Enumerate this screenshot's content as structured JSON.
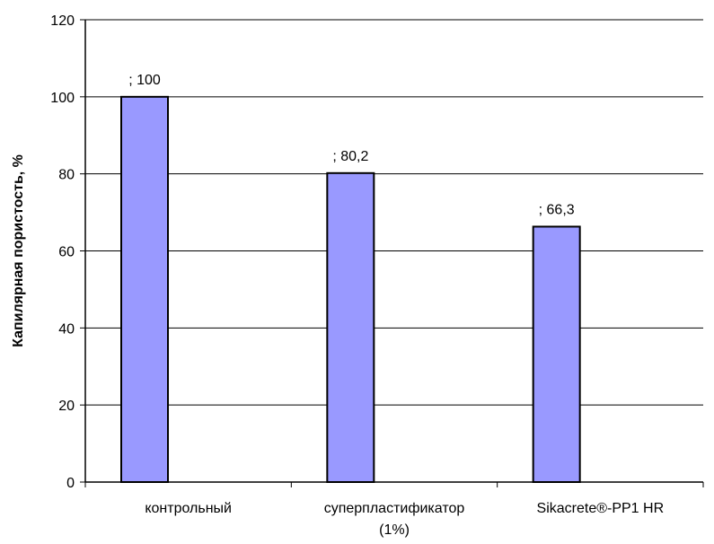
{
  "chart_data": {
    "type": "bar",
    "categories": [
      "контрольный",
      "суперпластификатор (1%)",
      "Sikacrete®-PP1 HR"
    ],
    "category_lines": [
      [
        "контрольный"
      ],
      [
        "суперпластификатор",
        "(1%)"
      ],
      [
        "Sikacrete®-PP1 HR"
      ]
    ],
    "values": [
      100,
      80.2,
      66.3
    ],
    "data_labels": [
      "; 100",
      "; 80,2",
      "; 66,3"
    ],
    "title": "",
    "xlabel": "",
    "ylabel": "Капилярная пористость, %",
    "ylim": [
      0,
      120
    ],
    "yticks": [
      0,
      20,
      40,
      60,
      80,
      100,
      120
    ],
    "grid": true,
    "bar_color": "#9999ff",
    "bar_edge_color": "#000000"
  }
}
